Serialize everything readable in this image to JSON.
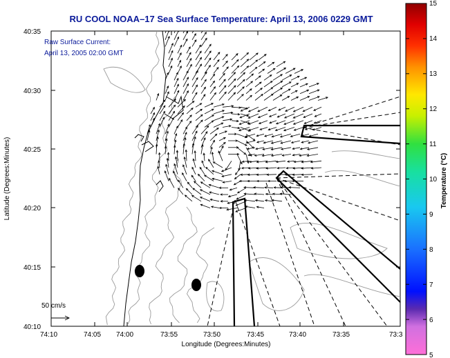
{
  "title": "RU COOL  NOAA–17  Sea Surface Temperature:  April 13, 2006 0229 GMT",
  "annotation": {
    "line1": "Raw Surface Current:",
    "line2": "April 13, 2005 02:00 GMT"
  },
  "axes": {
    "xlabel": "Longitude (Degrees:Minutes)",
    "ylabel": "Latitude (Degrees:Minutes)",
    "x_ticks": [
      "74:10",
      "74:05",
      "74:00",
      "73:55",
      "73:50",
      "73:45",
      "73:40",
      "73:35",
      "73:3"
    ],
    "y_ticks": [
      "40:35",
      "40:30",
      "40:25",
      "40:20",
      "40:15",
      "40:10"
    ]
  },
  "scale_label": "50 cm/s",
  "colorbar": {
    "label": "Temperature (°C)",
    "ticks": [
      "15",
      "14",
      "13",
      "12",
      "11",
      "10",
      "9",
      "8",
      "7",
      "6",
      "5"
    ],
    "min": 5,
    "max": 15
  },
  "colors": {
    "title": "#0a1a9a",
    "vector": "#000000",
    "contour": "#9a9a9a"
  }
}
